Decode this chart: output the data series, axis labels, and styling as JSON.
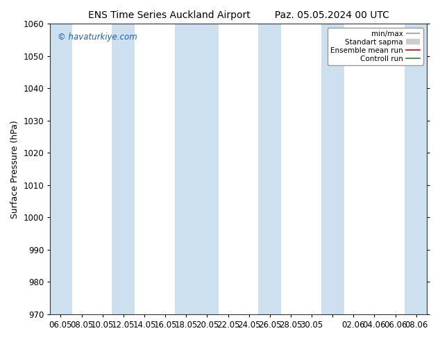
{
  "title_left": "ENS Time Series Auckland Airport",
  "title_right": "Paz. 05.05.2024 00 UTC",
  "ylabel": "Surface Pressure (hPa)",
  "ylim": [
    970,
    1060
  ],
  "yticks": [
    970,
    980,
    990,
    1000,
    1010,
    1020,
    1030,
    1040,
    1050,
    1060
  ],
  "xtick_labels": [
    "06.05",
    "08.05",
    "10.05",
    "12.05",
    "14.05",
    "16.05",
    "18.05",
    "20.05",
    "22.05",
    "24.05",
    "26.05",
    "28.05",
    "30.05",
    "",
    "02.06",
    "04.06",
    "06.06",
    "08.06"
  ],
  "watermark": "© havaturkiye.com",
  "legend_entries": [
    "min/max",
    "Standart sapma",
    "Ensemble mean run",
    "Controll run"
  ],
  "legend_line_colors": [
    "#aaaaaa",
    "#cccccc",
    "#cc0000",
    "#228822"
  ],
  "band_color": "#cce0f0",
  "background_color": "#ffffff",
  "band_indices": [
    0,
    3,
    6,
    7,
    10,
    13,
    17
  ],
  "title_fontsize": 10,
  "axis_label_fontsize": 9,
  "tick_fontsize": 8.5
}
